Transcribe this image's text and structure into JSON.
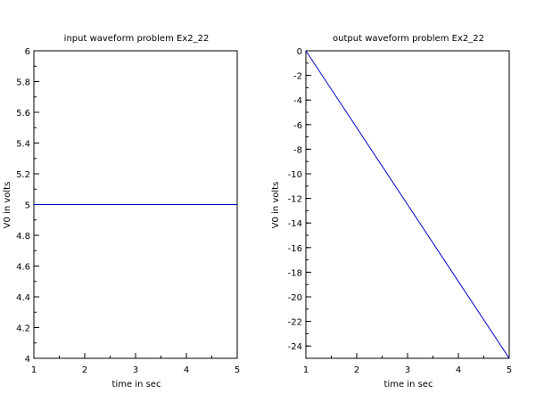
{
  "chart_data": [
    {
      "type": "line",
      "title": "input waveform problem Ex2_22",
      "xlabel": "time in sec",
      "ylabel": "V0 in volts",
      "xlim": [
        1,
        5
      ],
      "ylim": [
        4,
        6
      ],
      "x_ticks": [
        1,
        2,
        3,
        4,
        5
      ],
      "y_ticks": [
        4,
        4.2,
        4.4,
        4.6,
        4.8,
        5,
        5.2,
        5.4,
        5.6,
        5.8,
        6
      ],
      "x_minor_step": 0.5,
      "y_minor_step": 0.1,
      "grid": false,
      "series": [
        {
          "color": "#0000cc",
          "x": [
            1,
            5
          ],
          "y": [
            5,
            5
          ]
        }
      ]
    },
    {
      "type": "line",
      "title": "output waveform problem Ex2_22",
      "xlabel": "time in sec",
      "ylabel": "V0 in volts",
      "xlim": [
        1,
        5
      ],
      "ylim": [
        -25,
        0
      ],
      "x_ticks": [
        1,
        2,
        3,
        4,
        5
      ],
      "y_ticks": [
        -24,
        -22,
        -20,
        -18,
        -16,
        -14,
        -12,
        -10,
        -8,
        -6,
        -4,
        -2,
        0
      ],
      "x_minor_step": 0.5,
      "y_minor_step": 1,
      "grid": false,
      "series": [
        {
          "color": "#0000cc",
          "x": [
            1,
            5
          ],
          "y": [
            0,
            -25
          ]
        }
      ]
    }
  ]
}
